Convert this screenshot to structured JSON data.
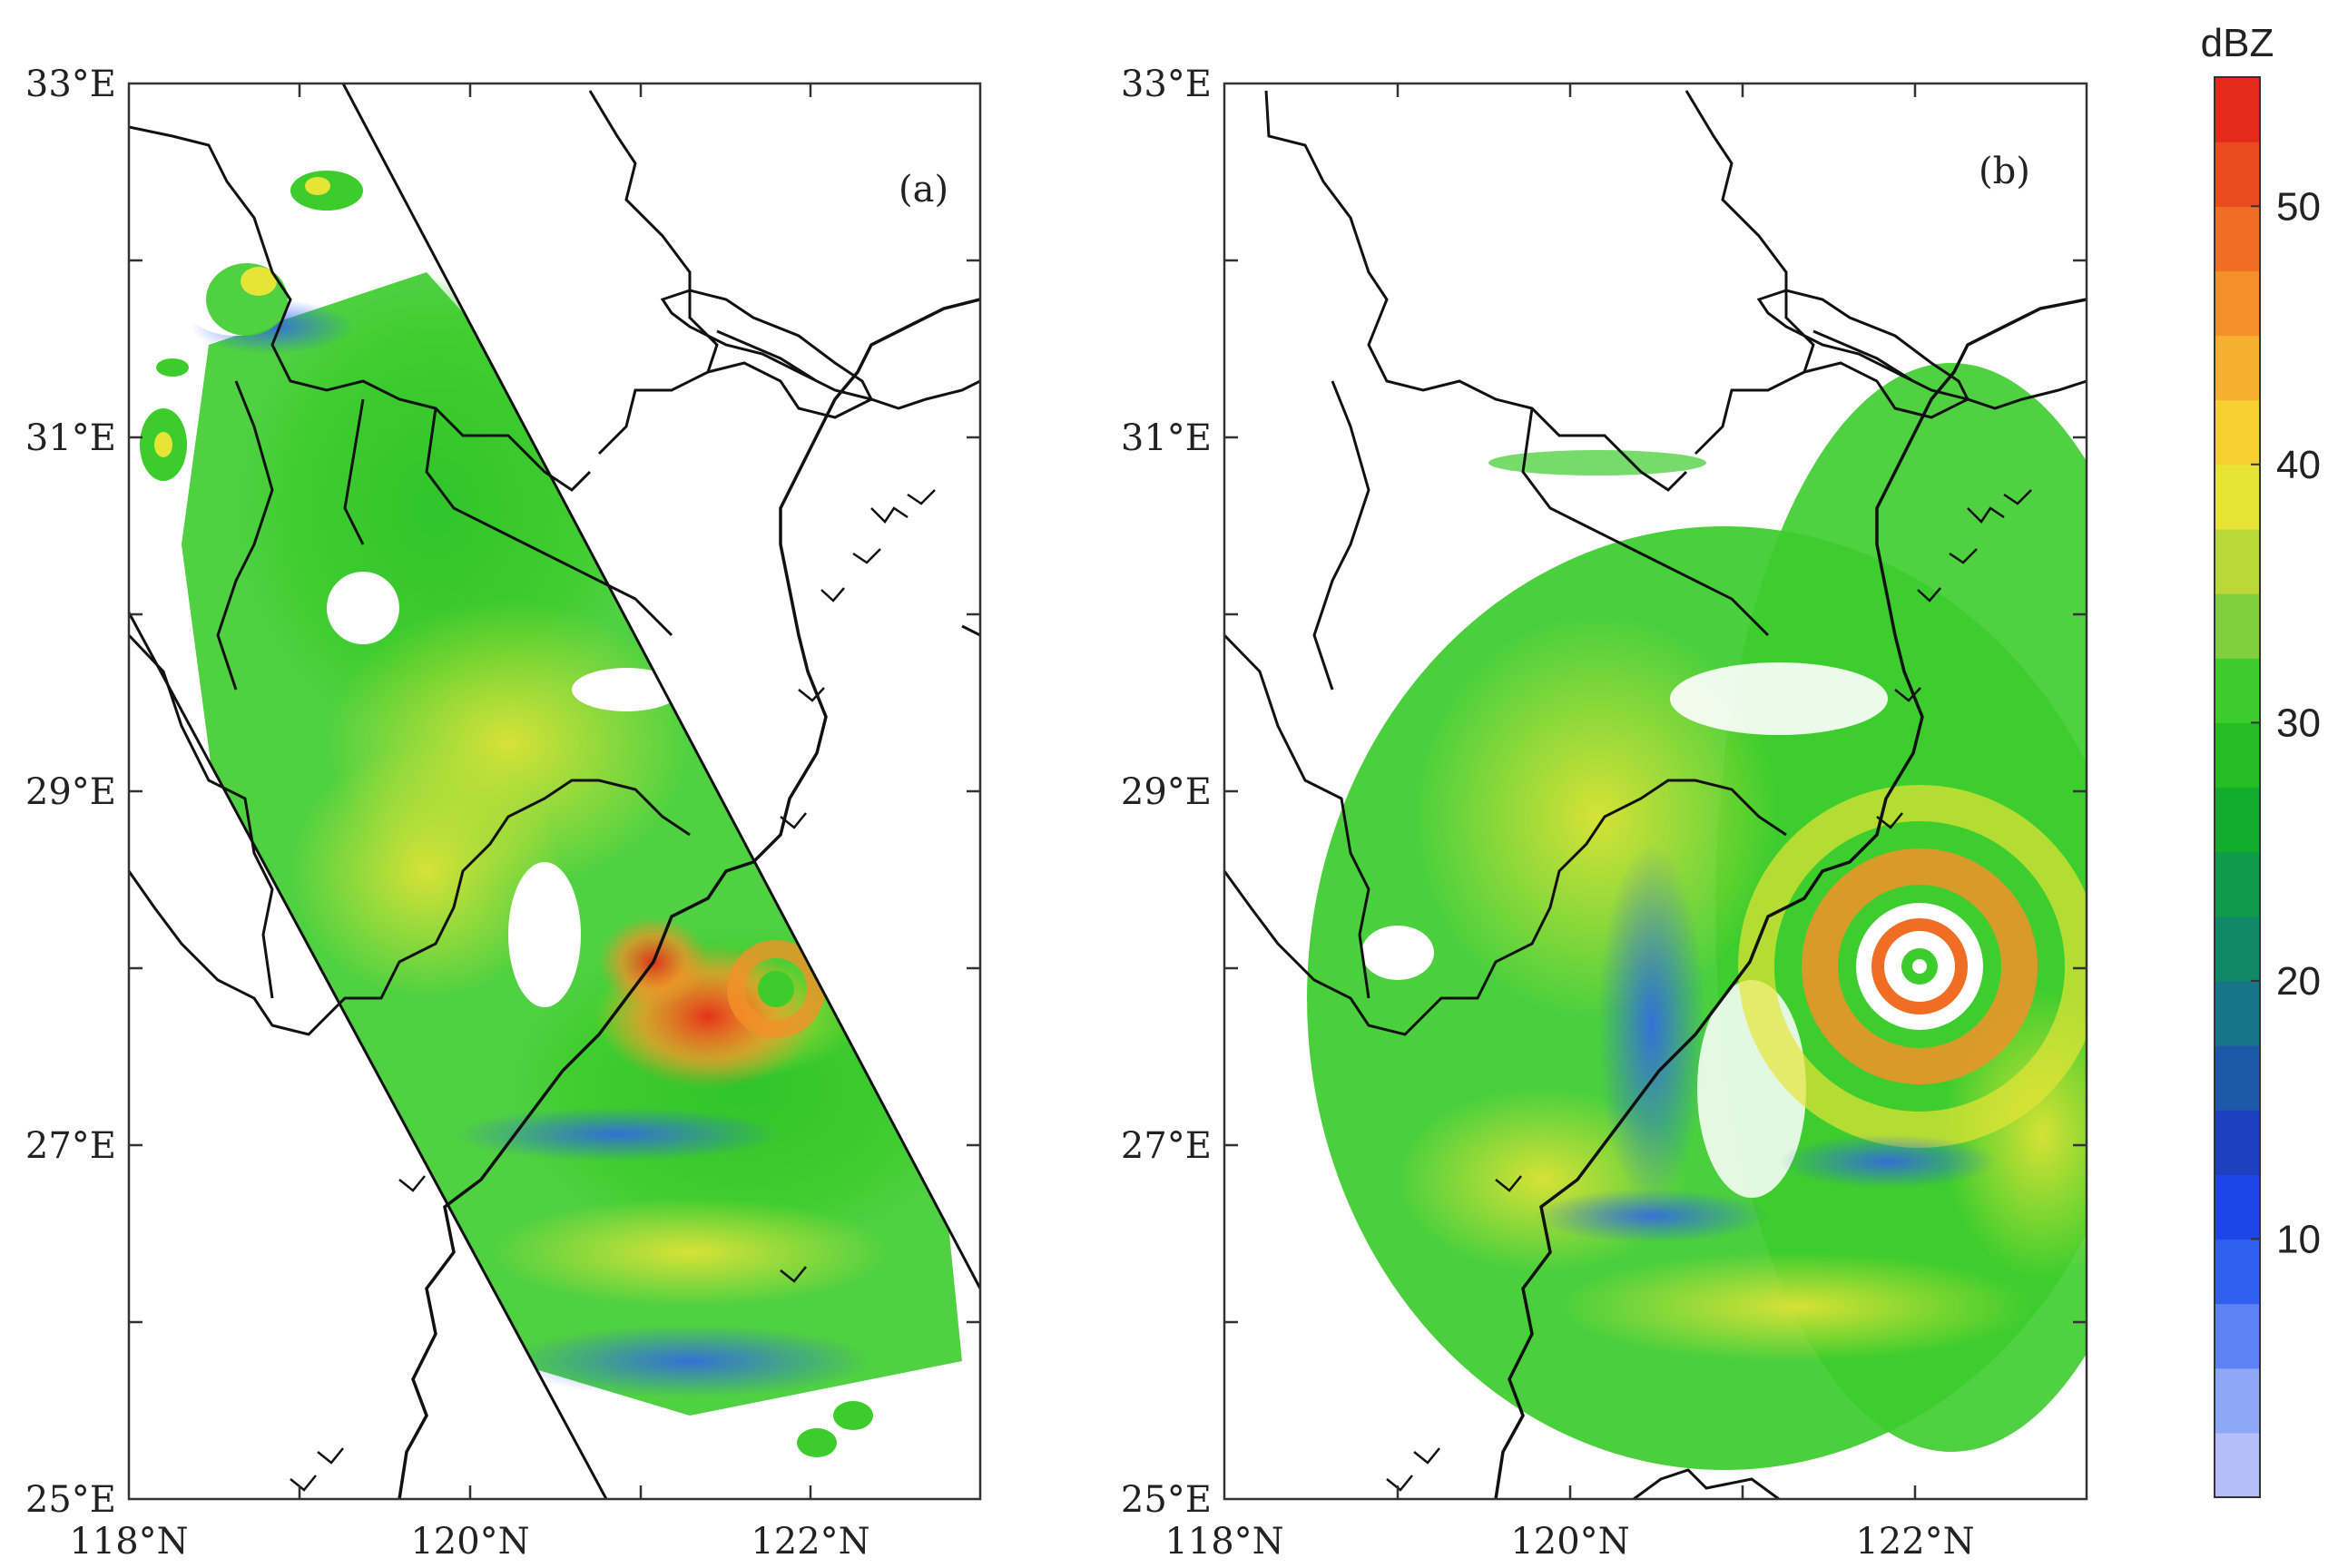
{
  "colors": {
    "background": "#ffffff",
    "coast": "#111111",
    "swath_edge": "#111111"
  },
  "panels": [
    {
      "label": "(a)",
      "x_ticks": [
        "118°N",
        "120°N",
        "122°N"
      ],
      "y_ticks": [
        "33°E",
        "31°E",
        "29°E",
        "27°E",
        "25°E"
      ]
    },
    {
      "label": "(b)",
      "x_ticks": [
        "118°N",
        "120°N",
        "122°N"
      ],
      "y_ticks": [
        "33°E",
        "31°E",
        "29°E",
        "27°E",
        "25°E"
      ]
    }
  ],
  "colorbar": {
    "title": "dBZ",
    "ticks": [
      "10",
      "20",
      "30",
      "40",
      "50"
    ],
    "min": 0,
    "max": 55,
    "colors": [
      "#b4bef8",
      "#8ea8f8",
      "#5d82f5",
      "#3060f0",
      "#1c47e6",
      "#1e3fc0",
      "#1c5aa8",
      "#187488",
      "#118868",
      "#0f9c4a",
      "#14ac2c",
      "#24bd24",
      "#3ccc2c",
      "#7fd03c",
      "#bcd838",
      "#e6e436",
      "#f5d030",
      "#f4b02e",
      "#f39128",
      "#f06e24",
      "#ea4a20",
      "#e42a1a"
    ]
  }
}
